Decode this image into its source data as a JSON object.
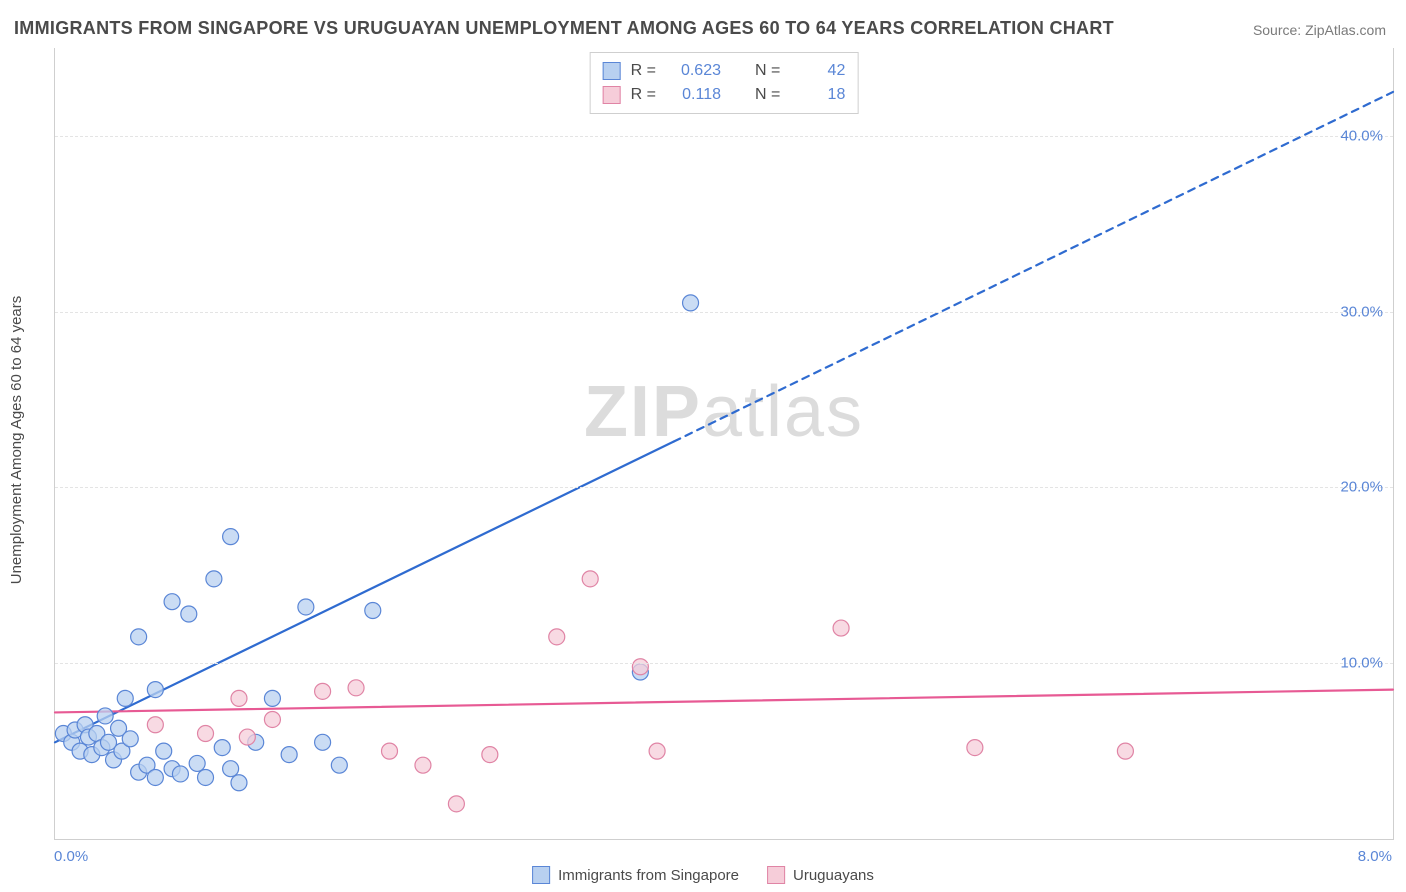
{
  "title": "IMMIGRANTS FROM SINGAPORE VS URUGUAYAN UNEMPLOYMENT AMONG AGES 60 TO 64 YEARS CORRELATION CHART",
  "source_label": "Source:",
  "source_value": "ZipAtlas.com",
  "ylabel": "Unemployment Among Ages 60 to 64 years",
  "watermark_a": "ZIP",
  "watermark_b": "atlas",
  "chart": {
    "type": "scatter",
    "xlim": [
      0,
      8
    ],
    "ylim": [
      0,
      45
    ],
    "x_tick_left": "0.0%",
    "x_tick_right": "8.0%",
    "y_ticks": [
      {
        "v": 10,
        "label": "10.0%"
      },
      {
        "v": 20,
        "label": "20.0%"
      },
      {
        "v": 30,
        "label": "30.0%"
      },
      {
        "v": 40,
        "label": "40.0%"
      }
    ],
    "background_color": "#ffffff",
    "grid_color": "#e4e4e4",
    "axis_color": "#cfcfcf",
    "tick_label_color": "#5a86d6",
    "marker_radius": 8,
    "marker_stroke_width": 1.2,
    "series": [
      {
        "name": "Immigrants from Singapore",
        "color_fill": "#b8d0f0",
        "color_stroke": "#5a86d6",
        "legend_swatch_fill": "#b8d0f0",
        "legend_swatch_stroke": "#5a86d6",
        "R_label": "R =",
        "R": "0.623",
        "N_label": "N =",
        "N": "42",
        "regression": {
          "x1": 0.0,
          "y1": 5.5,
          "x2": 8.0,
          "y2": 42.5,
          "solid_until_x": 3.7,
          "color": "#2f6bd0",
          "width": 2.2,
          "dash": "7,6"
        },
        "points": [
          [
            0.05,
            6.0
          ],
          [
            0.1,
            5.5
          ],
          [
            0.12,
            6.2
          ],
          [
            0.15,
            5.0
          ],
          [
            0.18,
            6.5
          ],
          [
            0.2,
            5.8
          ],
          [
            0.22,
            4.8
          ],
          [
            0.25,
            6.0
          ],
          [
            0.28,
            5.2
          ],
          [
            0.3,
            7.0
          ],
          [
            0.32,
            5.5
          ],
          [
            0.35,
            4.5
          ],
          [
            0.38,
            6.3
          ],
          [
            0.4,
            5.0
          ],
          [
            0.42,
            8.0
          ],
          [
            0.45,
            5.7
          ],
          [
            0.5,
            11.5
          ],
          [
            0.5,
            3.8
          ],
          [
            0.55,
            4.2
          ],
          [
            0.6,
            8.5
          ],
          [
            0.6,
            3.5
          ],
          [
            0.65,
            5.0
          ],
          [
            0.7,
            13.5
          ],
          [
            0.7,
            4.0
          ],
          [
            0.75,
            3.7
          ],
          [
            0.8,
            12.8
          ],
          [
            0.85,
            4.3
          ],
          [
            0.9,
            3.5
          ],
          [
            0.95,
            14.8
          ],
          [
            1.0,
            5.2
          ],
          [
            1.05,
            17.2
          ],
          [
            1.05,
            4.0
          ],
          [
            1.1,
            3.2
          ],
          [
            1.2,
            5.5
          ],
          [
            1.3,
            8.0
          ],
          [
            1.4,
            4.8
          ],
          [
            1.5,
            13.2
          ],
          [
            1.6,
            5.5
          ],
          [
            1.7,
            4.2
          ],
          [
            1.9,
            13.0
          ],
          [
            3.5,
            9.5
          ],
          [
            3.8,
            30.5
          ]
        ]
      },
      {
        "name": "Uruguayans",
        "color_fill": "#f6cdd9",
        "color_stroke": "#e084a5",
        "legend_swatch_fill": "#f6cdd9",
        "legend_swatch_stroke": "#e084a5",
        "R_label": "R =",
        "R": "0.118",
        "N_label": "N =",
        "N": "18",
        "regression": {
          "x1": 0.0,
          "y1": 7.2,
          "x2": 8.0,
          "y2": 8.5,
          "solid_until_x": 8.0,
          "color": "#e75a94",
          "width": 2.2,
          "dash": ""
        },
        "points": [
          [
            0.6,
            6.5
          ],
          [
            0.9,
            6.0
          ],
          [
            1.1,
            8.0
          ],
          [
            1.15,
            5.8
          ],
          [
            1.3,
            6.8
          ],
          [
            1.6,
            8.4
          ],
          [
            1.8,
            8.6
          ],
          [
            2.0,
            5.0
          ],
          [
            2.2,
            4.2
          ],
          [
            2.4,
            2.0
          ],
          [
            2.6,
            4.8
          ],
          [
            3.0,
            11.5
          ],
          [
            3.2,
            14.8
          ],
          [
            3.5,
            9.8
          ],
          [
            3.6,
            5.0
          ],
          [
            4.7,
            12.0
          ],
          [
            5.5,
            5.2
          ],
          [
            6.4,
            5.0
          ]
        ]
      }
    ]
  },
  "bottom_legend": {
    "items": [
      {
        "swatch_fill": "#b8d0f0",
        "swatch_stroke": "#5a86d6",
        "label": "Immigrants from Singapore"
      },
      {
        "swatch_fill": "#f6cdd9",
        "swatch_stroke": "#e084a5",
        "label": "Uruguayans"
      }
    ]
  }
}
